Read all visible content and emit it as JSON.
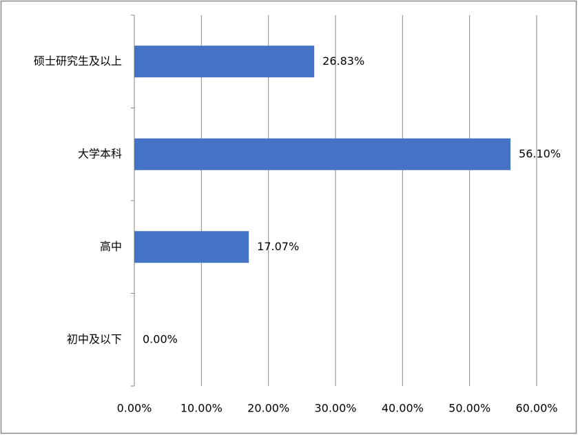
{
  "chart_data": {
    "type": "bar",
    "orientation": "horizontal",
    "categories": [
      "硕士研究生及以上",
      "大学本科",
      "高中",
      "初中及以下"
    ],
    "values": [
      26.83,
      56.1,
      17.07,
      0
    ],
    "value_labels": [
      "26.83%",
      "56.10%",
      "17.07%",
      "0.00%"
    ],
    "color": "#4472c4",
    "xlim": [
      0,
      60
    ],
    "xticks": [
      {
        "value": 0,
        "label": "0.00%"
      },
      {
        "value": 10,
        "label": "10.00%"
      },
      {
        "value": 20,
        "label": "20.00%"
      },
      {
        "value": 30,
        "label": "30.00%"
      },
      {
        "value": 40,
        "label": "40.00%"
      },
      {
        "value": 50,
        "label": "50.00%"
      },
      {
        "value": 60,
        "label": "60.00%"
      }
    ],
    "grid": true
  }
}
